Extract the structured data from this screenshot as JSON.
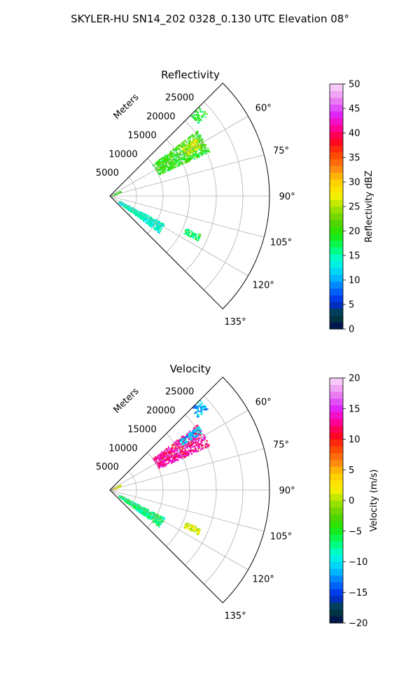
{
  "figure": {
    "title": "SKYLER-HU  SN14_202  0328_0.130 UTC Elevation 08°"
  },
  "chart_data": [
    {
      "type": "polar-sector",
      "title": "Reflectivity",
      "radial_label": "Meters",
      "r_ticks": [
        5000,
        10000,
        15000,
        20000,
        25000
      ],
      "r_tick_labels": [
        "5000",
        "10000",
        "15000",
        "20000",
        "25000"
      ],
      "r_max": 30000,
      "theta_ticks": [
        60,
        75,
        90,
        105,
        120,
        135
      ],
      "theta_tick_labels": [
        "60°",
        "75°",
        "90°",
        "105°",
        "120°",
        "135°"
      ],
      "theta_range_deg": [
        45,
        135
      ],
      "grid": true,
      "colorbar": {
        "label": "Reflectivity dBZ",
        "range": [
          0,
          50
        ],
        "ticks": [
          0,
          5,
          10,
          15,
          20,
          25,
          30,
          35,
          40,
          45,
          50
        ],
        "tick_labels": [
          "0",
          "5",
          "10",
          "15",
          "20",
          "25",
          "30",
          "35",
          "40",
          "45",
          "50"
        ]
      },
      "echo_regions": [
        {
          "az": [
            45,
            50
          ],
          "r": [
            21500,
            24000
          ],
          "value": 19
        },
        {
          "az": [
            53,
            66
          ],
          "r": [
            10000,
            20500
          ],
          "value": 20
        },
        {
          "az": [
            56,
            62
          ],
          "r": [
            16000,
            19500
          ],
          "value": 26
        },
        {
          "az": [
            62,
            68
          ],
          "r": [
            300,
            2200
          ],
          "value": 20
        },
        {
          "az": [
            117,
            127
          ],
          "r": [
            2000,
            11500
          ],
          "value": 14
        },
        {
          "az": [
            113,
            117
          ],
          "r": [
            15500,
            18500
          ],
          "value": 17
        }
      ]
    },
    {
      "type": "polar-sector",
      "title": "Velocity",
      "radial_label": "Meters",
      "r_ticks": [
        5000,
        10000,
        15000,
        20000,
        25000
      ],
      "r_tick_labels": [
        "5000",
        "10000",
        "15000",
        "20000",
        "25000"
      ],
      "r_max": 30000,
      "theta_ticks": [
        60,
        75,
        90,
        105,
        120,
        135
      ],
      "theta_tick_labels": [
        "60°",
        "75°",
        "90°",
        "105°",
        "120°",
        "135°"
      ],
      "theta_range_deg": [
        45,
        135
      ],
      "grid": true,
      "colorbar": {
        "label": "Velocity (m/s)",
        "range": [
          -20,
          20
        ],
        "ticks": [
          -20,
          -15,
          -10,
          -5,
          0,
          5,
          10,
          15,
          20
        ],
        "tick_labels": [
          "−20",
          "−15",
          "−10",
          "−5",
          "0",
          "5",
          "10",
          "15",
          "20"
        ]
      },
      "echo_regions": [
        {
          "az": [
            45,
            50
          ],
          "r": [
            21500,
            24000
          ],
          "value": -12
        },
        {
          "az": [
            53,
            66
          ],
          "r": [
            10000,
            20500
          ],
          "value": 13
        },
        {
          "az": [
            54,
            58
          ],
          "r": [
            16000,
            20500
          ],
          "value": -11
        },
        {
          "az": [
            62,
            68
          ],
          "r": [
            300,
            2200
          ],
          "value": 1
        },
        {
          "az": [
            117,
            127
          ],
          "r": [
            2000,
            11500
          ],
          "value": -7
        },
        {
          "az": [
            113,
            117
          ],
          "r": [
            15500,
            18500
          ],
          "value": 1
        }
      ]
    }
  ]
}
